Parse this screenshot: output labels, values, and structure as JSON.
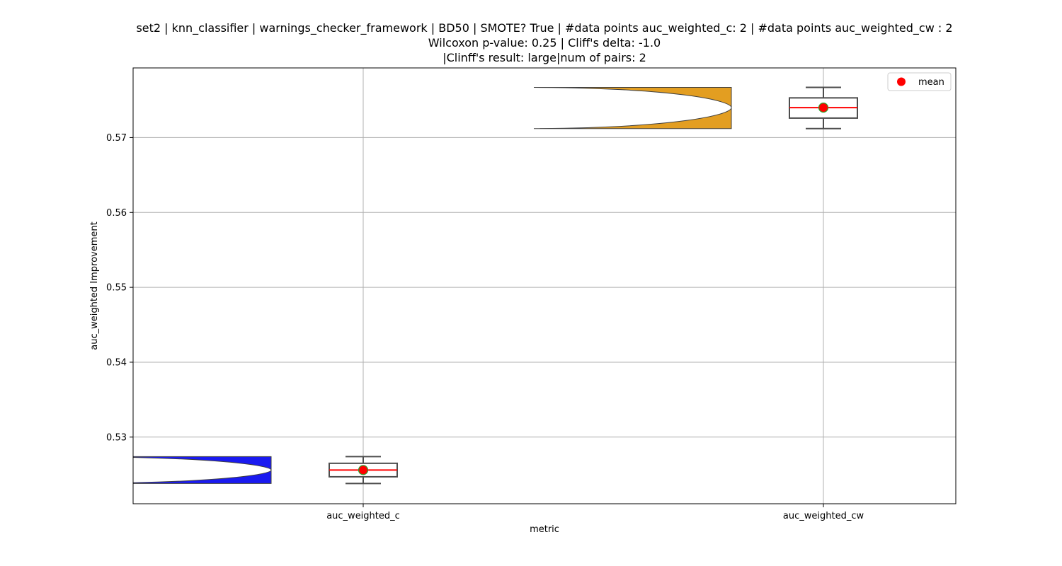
{
  "figure": {
    "title_lines": [
      "set2 | knn_classifier | warnings_checker_framework | BD50 | SMOTE? True | #data points auc_weighted_c: 2 | #data points auc_weighted_cw : 2",
      "Wilcoxon p-value: 0.25 | Cliff's delta: -1.0",
      "|Clinff's result: large|num of pairs: 2"
    ]
  },
  "chart_data": {
    "type": "violin+box",
    "xlabel": "metric",
    "ylabel": "auc_weighted Improvement",
    "categories": [
      "auc_weighted_c",
      "auc_weighted_cw"
    ],
    "ylim": [
      0.5211,
      0.5793
    ],
    "yticks": [
      0.53,
      0.54,
      0.55,
      0.56,
      0.57
    ],
    "ytick_labels": [
      "0.53",
      "0.54",
      "0.55",
      "0.56",
      "0.57"
    ],
    "grid": true,
    "legend": {
      "position": "top-right",
      "entries": [
        {
          "label": "mean",
          "color": "#ff0000",
          "marker": "circle"
        }
      ]
    },
    "groups": [
      {
        "category": "auc_weighted_c",
        "violin_color": "#1a1af0",
        "min": 0.5238,
        "q1": 0.5247,
        "median": 0.5256,
        "mean": 0.5256,
        "q3": 0.5265,
        "max": 0.5274
      },
      {
        "category": "auc_weighted_cw",
        "violin_color": "#e39e21",
        "min": 0.5712,
        "q1": 0.5726,
        "median": 0.574,
        "mean": 0.574,
        "q3": 0.5753,
        "max": 0.5767
      }
    ],
    "colors": {
      "median_line": "#ff0000",
      "mean_marker": "#ff0000",
      "mean_edge": "#2ca02c",
      "box_edge": "#4d4d4d",
      "grid": "#b0b0b0"
    }
  }
}
